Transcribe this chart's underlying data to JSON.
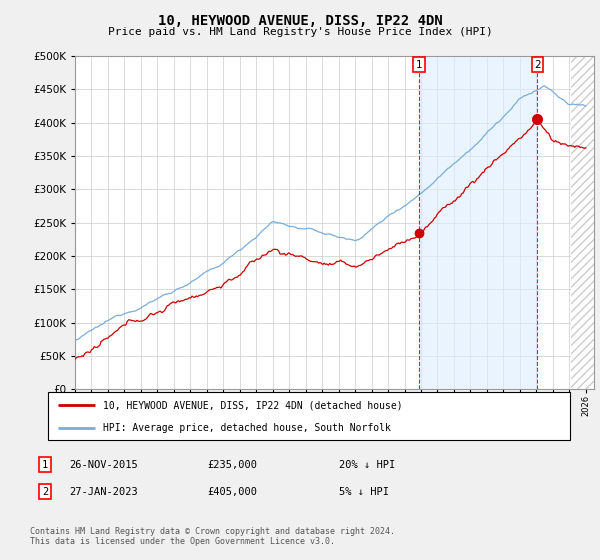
{
  "title": "10, HEYWOOD AVENUE, DISS, IP22 4DN",
  "subtitle": "Price paid vs. HM Land Registry's House Price Index (HPI)",
  "x_start_year": 1995,
  "x_end_year": 2026,
  "y_min": 0,
  "y_max": 500000,
  "y_ticks": [
    0,
    50000,
    100000,
    150000,
    200000,
    250000,
    300000,
    350000,
    400000,
    450000,
    500000
  ],
  "hpi_color": "#7aaddb",
  "price_color": "#cc0000",
  "sale1_year": 2015.9,
  "sale1_price": 235000,
  "sale1_label": "1",
  "sale2_year": 2023.07,
  "sale2_price": 405000,
  "sale2_label": "2",
  "legend_label_price": "10, HEYWOOD AVENUE, DISS, IP22 4DN (detached house)",
  "legend_label_hpi": "HPI: Average price, detached house, South Norfolk",
  "annotation1_date": "26-NOV-2015",
  "annotation1_price": "£235,000",
  "annotation1_hpi": "20% ↓ HPI",
  "annotation2_date": "27-JAN-2023",
  "annotation2_price": "£405,000",
  "annotation2_hpi": "5% ↓ HPI",
  "footnote": "Contains HM Land Registry data © Crown copyright and database right 2024.\nThis data is licensed under the Open Government Licence v3.0.",
  "background_color": "#f0f0f0",
  "plot_bg_color": "#ffffff"
}
